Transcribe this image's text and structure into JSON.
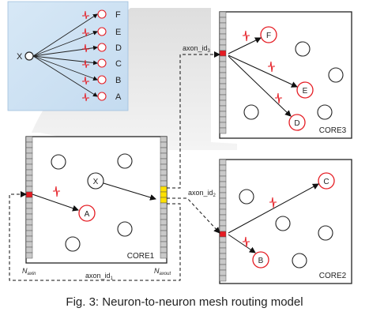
{
  "legend": {
    "source_neuron": "X",
    "target_neurons": [
      "F",
      "E",
      "D",
      "C",
      "B",
      "A"
    ]
  },
  "cores": {
    "core1": {
      "label": "CORE1",
      "neurons": [
        "X",
        "A"
      ],
      "axin_label_main": "N",
      "axin_label_sub": "axin",
      "axout_label_main": "N",
      "axout_label_sub": "axout"
    },
    "core2": {
      "label": "CORE2",
      "neurons": [
        "C",
        "B"
      ]
    },
    "core3": {
      "label": "CORE3",
      "neurons": [
        "F",
        "E",
        "D"
      ]
    }
  },
  "links": {
    "axon_id1": {
      "main": "axon_id",
      "sub": "1"
    },
    "axon_id2": {
      "main": "axon_id",
      "sub": "2"
    },
    "axon_id3": {
      "main": "axon_id",
      "sub": "3"
    }
  },
  "colors": {
    "panel_fill": "#cfe2f4",
    "axon_red": "#e51c23",
    "axout_yellow": "#ffe100",
    "neuron_ring": "#e51c23",
    "shadow_gray": "#e9e9e9"
  },
  "caption": "Fig. 3: Neuron-to-neuron mesh routing model"
}
